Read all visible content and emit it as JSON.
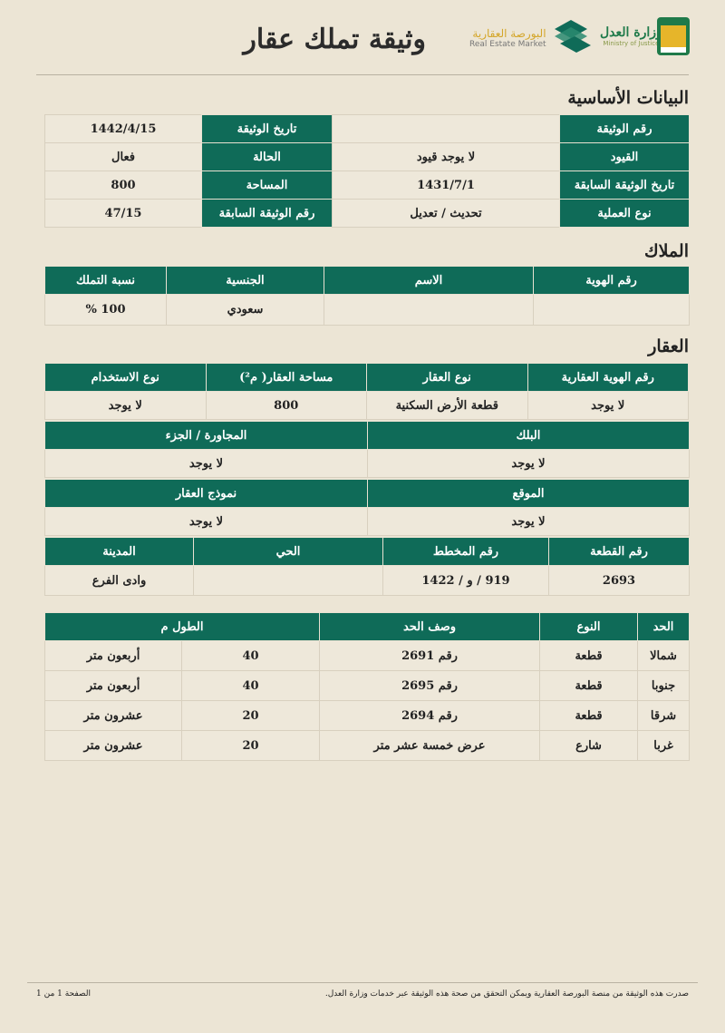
{
  "header": {
    "title": "وثيقة تملك عقار",
    "logo_market_ar": "البورصة العقارية",
    "logo_market_en": "Real Estate Market",
    "logo_moj_ar": "وزارة العدل",
    "logo_moj_en": "Ministry of Justice"
  },
  "basic": {
    "heading": "البيانات الأساسية",
    "rows": [
      [
        "رقم الوثيقة",
        "",
        "تاريخ الوثيقة",
        "1442/4/15"
      ],
      [
        "القيود",
        "لا يوجد قيود",
        "الحالة",
        "فعال"
      ],
      [
        "تاريخ الوثيقة السابقة",
        "1431/7/1",
        "المساحة",
        "800"
      ],
      [
        "نوع العملية",
        "تحديث / تعديل",
        "رقم الوثيقة السابقة",
        "47/15"
      ]
    ]
  },
  "owners": {
    "heading": "الملاك",
    "columns": [
      "رقم الهوية",
      "الاسم",
      "الجنسية",
      "نسبة التملك"
    ],
    "rows": [
      [
        "",
        "",
        "سعودي",
        "100 %"
      ]
    ]
  },
  "property": {
    "heading": "العقار",
    "columns": [
      "رقم الهوية العقارية",
      "نوع العقار",
      "مساحة العقار( م²)",
      "نوع الاستخدام"
    ],
    "row": [
      "لا يوجد",
      "قطعة الأرض السكنية",
      "800",
      "لا يوجد"
    ],
    "block_columns": [
      "البلك",
      "المجاورة / الجزء"
    ],
    "block_row": [
      "لا يوجد",
      "لا يوجد"
    ],
    "location_columns": [
      "الموقع",
      "نموذج العقار"
    ],
    "location_row": [
      "لا يوجد",
      "لا يوجد"
    ],
    "plot_columns": [
      "رقم القطعة",
      "رقم المخطط",
      "الحي",
      "المدينة"
    ],
    "plot_row": [
      "2693",
      "919 / و / 1422",
      "",
      "وادى الفرع"
    ]
  },
  "bounds": {
    "columns": [
      "الحد",
      "النوع",
      "وصف الحد",
      "الطول م"
    ],
    "rows": [
      [
        "شمالا",
        "قطعة",
        "رقم 2691",
        "40",
        "أربعون متر"
      ],
      [
        "جنوبا",
        "قطعة",
        "رقم 2695",
        "40",
        "أربعون متر"
      ],
      [
        "شرقا",
        "قطعة",
        "رقم 2694",
        "20",
        "عشرون متر"
      ],
      [
        "غربا",
        "شارع",
        "عرض خمسة عشر متر",
        "20",
        "عشرون متر"
      ]
    ]
  },
  "footer": {
    "note": "صدرت هذه الوثيقة من منصة البورصة العقارية ويمكن التحقق من صحة هذه الوثيقة عبر خدمات وزارة العدل.",
    "page": "الصفحة 1 من 1"
  },
  "colors": {
    "header_green": "#0f6b58",
    "background": "#ece5d5"
  }
}
